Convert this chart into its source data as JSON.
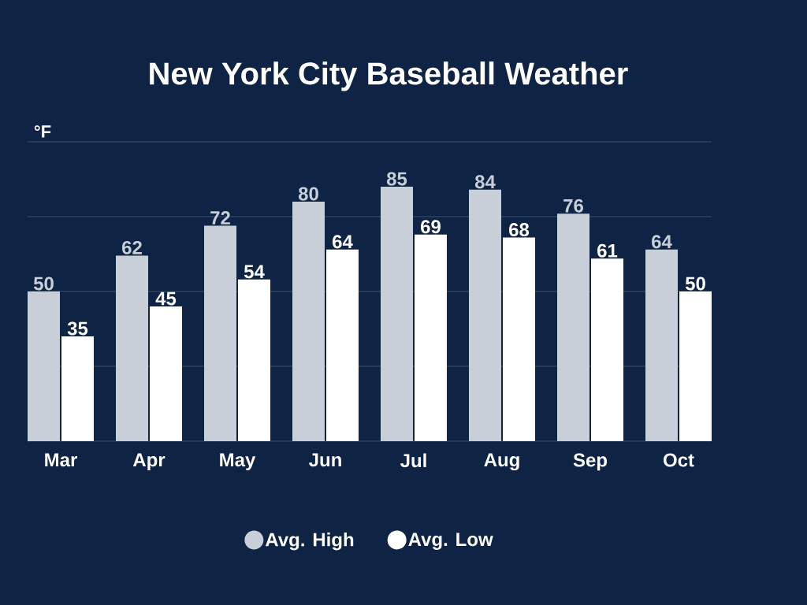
{
  "chart_data": {
    "type": "bar",
    "title": "New York City Baseball Weather",
    "ylabel": "°F",
    "categories": [
      "Mar",
      "Apr",
      "May",
      "Jun",
      "Jul",
      "Aug",
      "Sep",
      "Oct"
    ],
    "series": [
      {
        "name": "Avg. High",
        "color": "#c8cfd8",
        "values": [
          50,
          62,
          72,
          80,
          85,
          84,
          76,
          64
        ]
      },
      {
        "name": "Avg. Low",
        "color": "#ffffff",
        "values": [
          35,
          45,
          54,
          64,
          69,
          68,
          61,
          50
        ]
      }
    ],
    "ylim": [
      0,
      100
    ],
    "yticks": [
      {
        "value": 0,
        "label": null
      },
      {
        "value": 25,
        "label": null
      },
      {
        "value": 50,
        "label": null
      },
      {
        "value": 75,
        "label": null
      },
      {
        "value": 100,
        "label": null
      }
    ],
    "tick_labels": "x",
    "grid": "y",
    "data_labels": true,
    "legend": "bottom"
  }
}
